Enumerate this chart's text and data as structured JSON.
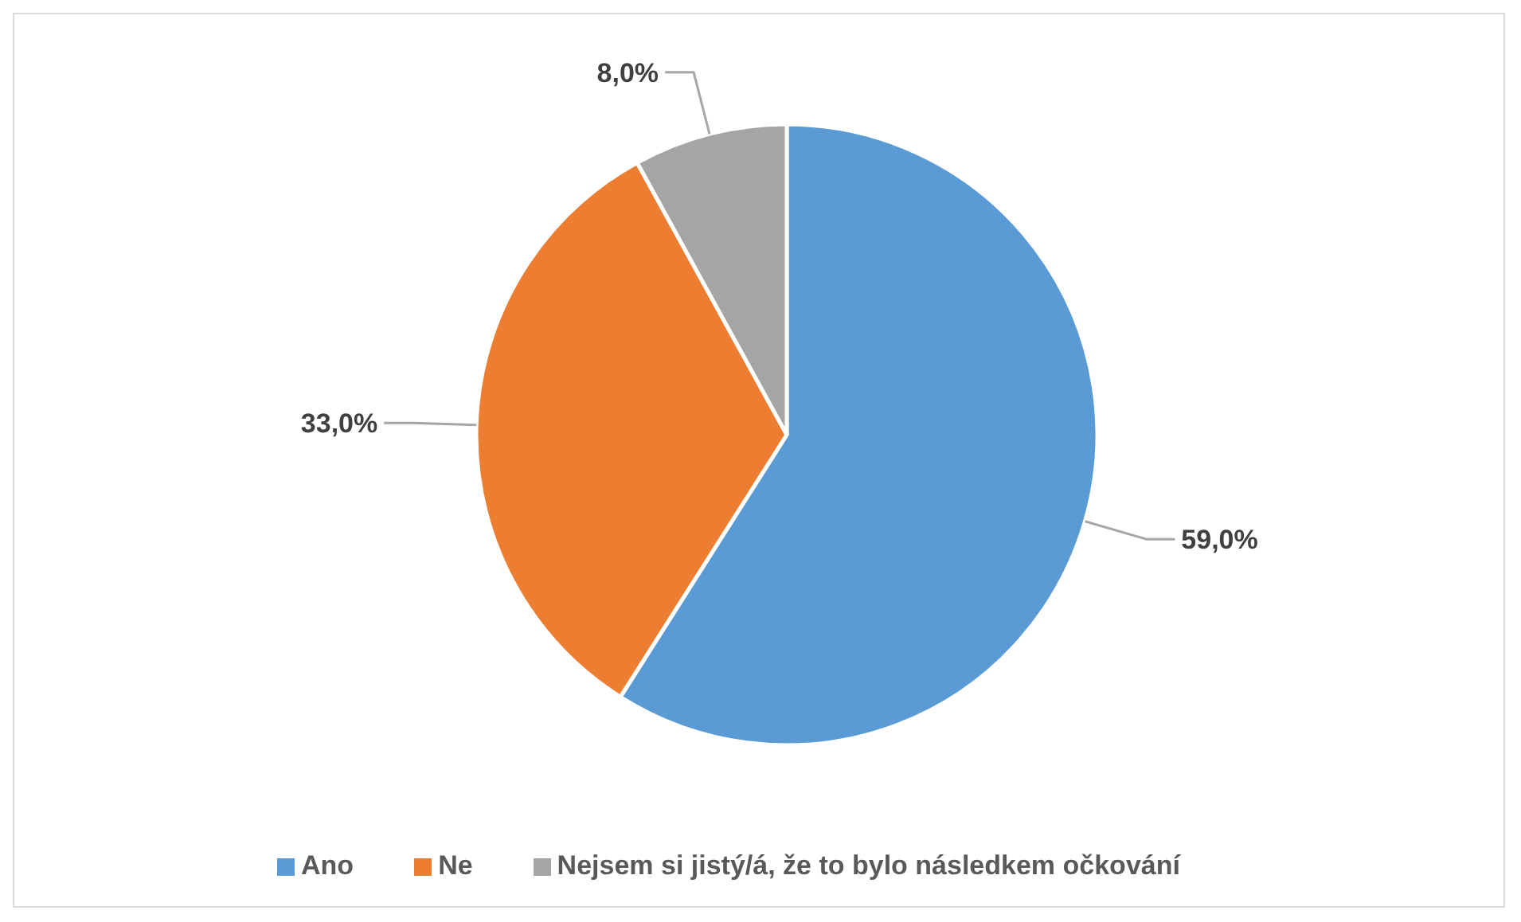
{
  "chart_data": {
    "type": "pie",
    "categories": [
      "Ano",
      "Ne",
      "Nejsem si jistý/á, že to bylo následkem očkování"
    ],
    "values": [
      59,
      33,
      8
    ],
    "colors": [
      "#5b9bd5",
      "#ed7d31",
      "#a5a5a5"
    ],
    "value_labels": [
      "59,0%",
      "33,0%",
      "8,0%"
    ],
    "legend": "bottom"
  }
}
